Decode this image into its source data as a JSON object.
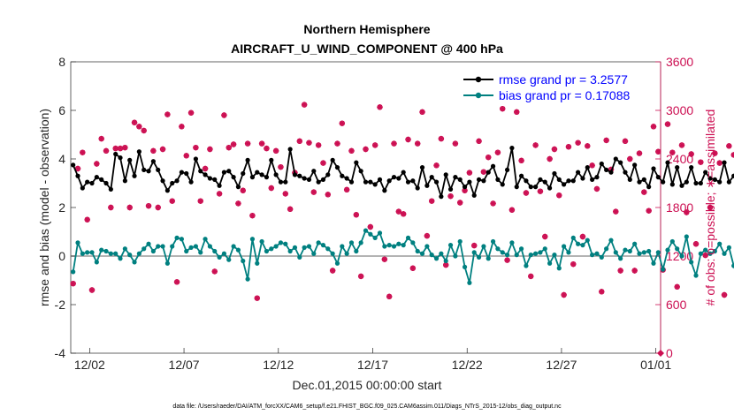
{
  "chart_data": {
    "type": "line",
    "title": "Northern Hemisphere",
    "subtitle": "AIRCRAFT_U_WIND_COMPONENT @ 400 hPa",
    "xlabel": "Dec.01,2015 00:00:00 start",
    "ylabel_left": "rmse and bias (model - observation)",
    "ylabel_right": "# of obs: o=possible; ∗=assimilated",
    "ylim_left": [
      -4,
      8
    ],
    "ylim_right": [
      0,
      3600
    ],
    "yticks_left": [
      "-4",
      "-2",
      "0",
      "2",
      "4",
      "6",
      "8"
    ],
    "yticks_right": [
      "0",
      "600",
      "1200",
      "1800",
      "2400",
      "3000",
      "3600"
    ],
    "xlim_days": [
      0,
      31.25
    ],
    "xtick_labels": [
      "12/02",
      "12/07",
      "12/12",
      "12/17",
      "12/22",
      "12/27",
      "01/01"
    ],
    "x_step_days": 0.25,
    "legend": {
      "position": "top-right"
    },
    "series": [
      {
        "name": "rmse grand pr = 3.2577",
        "color": "#000000",
        "values": [
          3.75,
          3.3,
          2.8,
          3.05,
          3.0,
          3.25,
          3.15,
          3.0,
          2.75,
          4.2,
          4.05,
          3.1,
          3.95,
          3.3,
          4.3,
          3.55,
          3.5,
          3.9,
          3.55,
          3.1,
          2.7,
          3.0,
          3.1,
          3.45,
          3.4,
          3.05,
          4.0,
          3.5,
          3.35,
          3.2,
          3.15,
          2.9,
          3.45,
          3.5,
          3.25,
          2.85,
          3.4,
          3.95,
          3.25,
          3.45,
          3.35,
          3.25,
          3.95,
          3.35,
          3.05,
          3.05,
          4.4,
          3.35,
          3.3,
          3.2,
          3.15,
          3.5,
          3.05,
          3.15,
          3.35,
          3.95,
          3.65,
          3.3,
          3.2,
          3.05,
          3.85,
          3.5,
          3.05,
          3.05,
          2.95,
          3.15,
          2.7,
          3.1,
          3.25,
          3.2,
          3.45,
          3.05,
          3.1,
          2.8,
          3.65,
          2.9,
          3.25,
          3.05,
          2.45,
          3.35,
          2.75,
          3.25,
          3.15,
          2.85,
          3.05,
          2.5,
          3.15,
          3.1,
          3.45,
          3.7,
          3.15,
          2.95,
          3.55,
          4.45,
          2.85,
          3.3,
          3.1,
          2.85,
          2.85,
          3.15,
          3.05,
          2.8,
          3.4,
          3.15,
          2.95,
          3.1,
          3.1,
          3.45,
          3.2,
          3.65,
          3.15,
          3.25,
          3.8,
          3.55,
          3.45,
          4.0,
          3.85,
          3.45,
          3.15,
          3.75,
          3.05,
          3.15,
          2.85,
          3.6,
          3.25,
          3.05,
          3.85,
          2.95,
          3.65,
          2.9,
          3.05,
          3.65,
          3.0,
          3.0,
          3.45,
          3.2,
          3.15,
          3.05,
          3.85,
          3.05,
          3.3,
          2.9,
          3.4,
          2.95,
          3.35,
          3.5,
          3.05,
          2.9,
          3.2,
          2.85,
          2.85,
          3.2,
          2.95,
          3.0,
          3.15,
          2.9,
          3.35,
          3.0,
          3.1,
          3.05,
          3.05,
          3.05,
          3.1,
          3.05,
          3.0,
          3.05,
          3.0,
          2.75,
          3.05,
          3.0,
          3.1,
          3.3,
          3.25,
          3.0,
          3.45,
          3.25,
          3.05,
          3.65,
          3.2,
          3.3
        ]
      },
      {
        "name": "bias grand pr = 0.17088",
        "color": "#008080",
        "values": [
          -0.65,
          0.55,
          0.1,
          0.15,
          0.15,
          -0.25,
          0.25,
          0.2,
          0.1,
          0.1,
          -0.1,
          0.3,
          0.05,
          -0.25,
          0.1,
          0.3,
          0.5,
          0.2,
          0.4,
          0.4,
          -0.3,
          0.4,
          0.75,
          0.7,
          0.2,
          0.35,
          0.4,
          0.15,
          0.7,
          0.4,
          0.2,
          -0.05,
          0.1,
          -0.15,
          0.4,
          0.25,
          -0.2,
          -0.95,
          0.7,
          -0.3,
          0.6,
          0.2,
          0.3,
          0.4,
          0.55,
          0.5,
          0.2,
          0.35,
          -0.05,
          0.35,
          0.4,
          0.1,
          0.55,
          0.45,
          0.3,
          0.1,
          -0.3,
          0.4,
          0.1,
          0.55,
          0.2,
          0.55,
          1.05,
          0.9,
          0.75,
          0.95,
          0.4,
          0.45,
          0.4,
          0.5,
          0.45,
          0.75,
          0.55,
          0.2,
          0.1,
          0.4,
          0.05,
          -0.1,
          0.1,
          -0.2,
          0.45,
          0.0,
          0.6,
          -0.45,
          -1.1,
          0.15,
          -0.05,
          0.4,
          -0.1,
          0.6,
          0.3,
          0.15,
          0.05,
          0.55,
          0.05,
          0.3,
          -0.4,
          0.05,
          0.1,
          0.15,
          0.3,
          -0.3,
          0.05,
          -0.5,
          0.4,
          0.15,
          0.75,
          0.5,
          0.45,
          0.65,
          0.05,
          0.1,
          -0.05,
          0.3,
          0.65,
          0.15,
          -0.1,
          0.25,
          0.2,
          0.5,
          0.1,
          0.15,
          0.2,
          -0.3,
          0.15,
          -0.55,
          0.25,
          0.6,
          0.3,
          0.0,
          0.8,
          -0.25,
          -0.8,
          0.1,
          0.25,
          0.1,
          0.2,
          0.5,
          0.1,
          0.35,
          -0.4,
          -0.95,
          0.15,
          0.05,
          0.3,
          0.1,
          0.3,
          -0.15,
          0.3,
          -0.5,
          -0.1,
          0.35,
          0.3,
          0.25,
          -0.2,
          -1.0,
          0.15,
          0.25,
          0.1,
          0.35,
          0.15,
          0.4,
          0.55,
          0.7,
          0.2,
          0.2,
          -0.25,
          0.2,
          0.1,
          0.3,
          0.15,
          0.05,
          0.45,
          0.2,
          0.55,
          0.1,
          0.75,
          -0.55,
          -0.7,
          0.15,
          0.2,
          0.45
        ]
      }
    ],
    "obs_counts": {
      "color": "#cc0f52",
      "possible": [
        860,
        2280,
        2480,
        1650,
        780,
        2340,
        2650,
        2500,
        1800,
        2530,
        2530,
        2540,
        1800,
        2850,
        2800,
        2750,
        1820,
        2500,
        1800,
        2520,
        2950,
        1880,
        880,
        2800,
        2440,
        2970,
        2540,
        1880,
        2280,
        2520,
        1010,
        1970,
        2940,
        2540,
        2580,
        1850,
        2010,
        2590,
        1700,
        680,
        2590,
        2530,
        2040,
        2500,
        2300,
        1970,
        1780,
        2230,
        2620,
        3070,
        2600,
        1990,
        2570,
        2350,
        1960,
        1020,
        2590,
        2840,
        2020,
        2500,
        1710,
        950,
        2520,
        1560,
        2570,
        3040,
        1160,
        700,
        2590,
        1750,
        1720,
        2640,
        1050,
        2590,
        2980,
        1450,
        1880,
        2320,
        2650,
        1090,
        1940,
        2590,
        1860,
        2010,
        2230,
        1330,
        2620,
        2240,
        2420,
        1850,
        2480,
        3020,
        1150,
        1770,
        2980,
        2380,
        1980,
        950,
        2570,
        2000,
        1440,
        2400,
        2520,
        1950,
        720,
        2550,
        1100,
        2600,
        1440,
        2560,
        2320,
        2030,
        760,
        2630,
        2270,
        1750,
        1020,
        2620,
        2400,
        1020,
        2470,
        1990,
        1760,
        2800,
        2490,
        1030,
        2830,
        2480,
        820,
        2570,
        1740,
        2460,
        1350,
        2360,
        1210,
        1800,
        2470,
        2350,
        720,
        2560,
        2450,
        1120,
        1930,
        2480,
        1080,
        1750,
        2350,
        2160,
        2880,
        1060,
        2470,
        2250,
        920,
        1790,
        2140,
        2980,
        2600,
        2600,
        760,
        2430,
        2170,
        940,
        2300,
        2560,
        1750,
        2470,
        2030,
        2420,
        1240,
        2330,
        2620,
        1120,
        2510,
        1850,
        1290,
        2520,
        800,
        2510,
        2400,
        1120,
        2510,
        1050,
        1900
      ]
    }
  },
  "footer": {
    "file_note": "data file: /Users/raeder/DAI/ATM_forcXX/CAM6_setup/f.e21.FHIST_BGC.f09_025.CAM6assim.011/Diags_NTrS_2015-12/obs_diag_output.nc"
  }
}
